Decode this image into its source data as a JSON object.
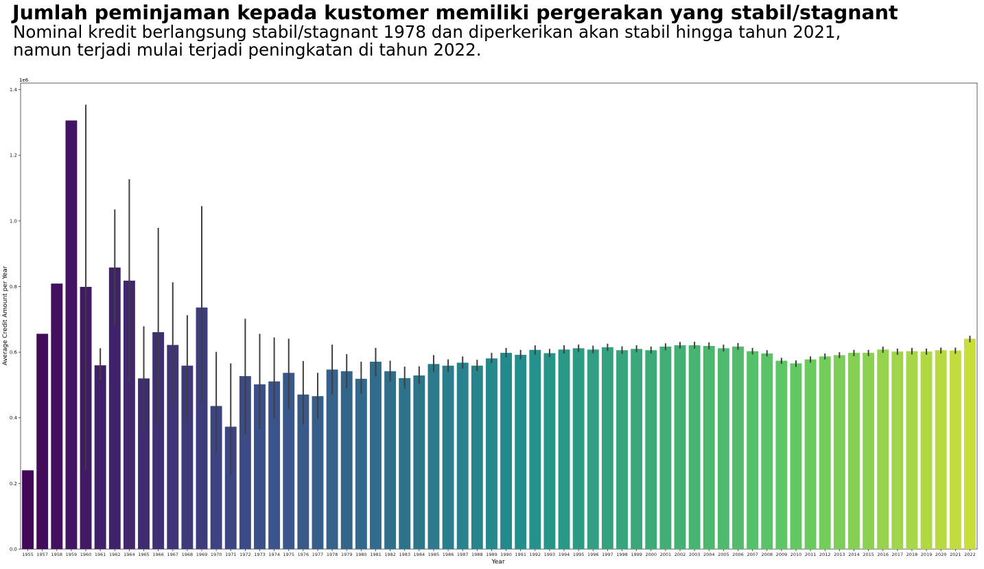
{
  "header": {
    "title": "Jumlah peminjaman kepada kustomer memiliki pergerakan yang stabil/stagnant",
    "subtitle_line1": "Nominal kredit berlangsung stabil/stagnant 1978 dan diperkerikan akan stabil hingga tahun 2021,",
    "subtitle_line2": "namun terjadi mulai terjadi peningkatan di tahun 2022."
  },
  "chart_data": {
    "type": "bar",
    "xlabel": "Year",
    "ylabel": "Average Credit Amount per Year",
    "y_offset_label": "1e6",
    "ylim": [
      0,
      1.42
    ],
    "yticks": [
      "0.0",
      "0.2",
      "0.4",
      "0.6",
      "0.8",
      "1.0",
      "1.2",
      "1.4"
    ],
    "palette": "viridis",
    "categories": [
      "1955",
      "1957",
      "1958",
      "1959",
      "1960",
      "1961",
      "1962",
      "1964",
      "1965",
      "1966",
      "1967",
      "1968",
      "1969",
      "1970",
      "1971",
      "1972",
      "1973",
      "1974",
      "1975",
      "1976",
      "1977",
      "1978",
      "1979",
      "1980",
      "1981",
      "1982",
      "1983",
      "1984",
      "1985",
      "1986",
      "1987",
      "1988",
      "1989",
      "1990",
      "1991",
      "1992",
      "1993",
      "1994",
      "1995",
      "1996",
      "1997",
      "1998",
      "1999",
      "2000",
      "2001",
      "2002",
      "2003",
      "2004",
      "2005",
      "2006",
      "2007",
      "2008",
      "2009",
      "2010",
      "2011",
      "2012",
      "2013",
      "2014",
      "2015",
      "2016",
      "2017",
      "2018",
      "2019",
      "2020",
      "2021",
      "2022"
    ],
    "values": [
      0.24,
      0.656,
      0.809,
      1.306,
      0.799,
      0.56,
      0.858,
      0.818,
      0.52,
      0.661,
      0.622,
      0.559,
      0.736,
      0.436,
      0.373,
      0.527,
      0.502,
      0.511,
      0.537,
      0.471,
      0.466,
      0.547,
      0.542,
      0.519,
      0.571,
      0.542,
      0.521,
      0.529,
      0.564,
      0.559,
      0.568,
      0.559,
      0.581,
      0.598,
      0.592,
      0.607,
      0.597,
      0.608,
      0.612,
      0.608,
      0.615,
      0.606,
      0.61,
      0.606,
      0.617,
      0.621,
      0.621,
      0.619,
      0.612,
      0.617,
      0.603,
      0.596,
      0.574,
      0.566,
      0.578,
      0.587,
      0.591,
      0.598,
      0.598,
      0.608,
      0.602,
      0.603,
      0.602,
      0.606,
      0.605,
      0.641
    ],
    "error_low": [
      null,
      null,
      null,
      null,
      0.244,
      0.515,
      0.683,
      0.511,
      0.364,
      0.381,
      0.437,
      0.387,
      0.443,
      0.292,
      0.224,
      0.349,
      0.366,
      0.398,
      0.427,
      0.381,
      0.396,
      0.471,
      0.49,
      0.473,
      0.526,
      0.511,
      0.489,
      0.503,
      0.54,
      0.54,
      0.55,
      0.542,
      0.567,
      0.584,
      0.578,
      0.593,
      0.585,
      0.596,
      0.601,
      0.597,
      0.604,
      0.595,
      0.6,
      0.596,
      0.606,
      0.611,
      0.611,
      0.609,
      0.602,
      0.607,
      0.593,
      0.587,
      0.564,
      0.555,
      0.568,
      0.578,
      0.582,
      0.588,
      0.588,
      0.598,
      0.592,
      0.593,
      0.592,
      0.596,
      0.595,
      0.63
    ],
    "error_high": [
      null,
      null,
      null,
      null,
      1.354,
      0.612,
      1.035,
      1.127,
      0.679,
      0.979,
      0.813,
      0.713,
      1.045,
      0.601,
      0.566,
      0.702,
      0.656,
      0.645,
      0.641,
      0.573,
      0.537,
      0.623,
      0.594,
      0.571,
      0.613,
      0.574,
      0.556,
      0.557,
      0.591,
      0.578,
      0.587,
      0.577,
      0.598,
      0.613,
      0.607,
      0.621,
      0.61,
      0.621,
      0.623,
      0.62,
      0.626,
      0.618,
      0.621,
      0.617,
      0.627,
      0.631,
      0.632,
      0.63,
      0.623,
      0.628,
      0.613,
      0.606,
      0.583,
      0.575,
      0.587,
      0.596,
      0.6,
      0.607,
      0.607,
      0.617,
      0.611,
      0.613,
      0.611,
      0.614,
      0.614,
      0.65
    ]
  }
}
